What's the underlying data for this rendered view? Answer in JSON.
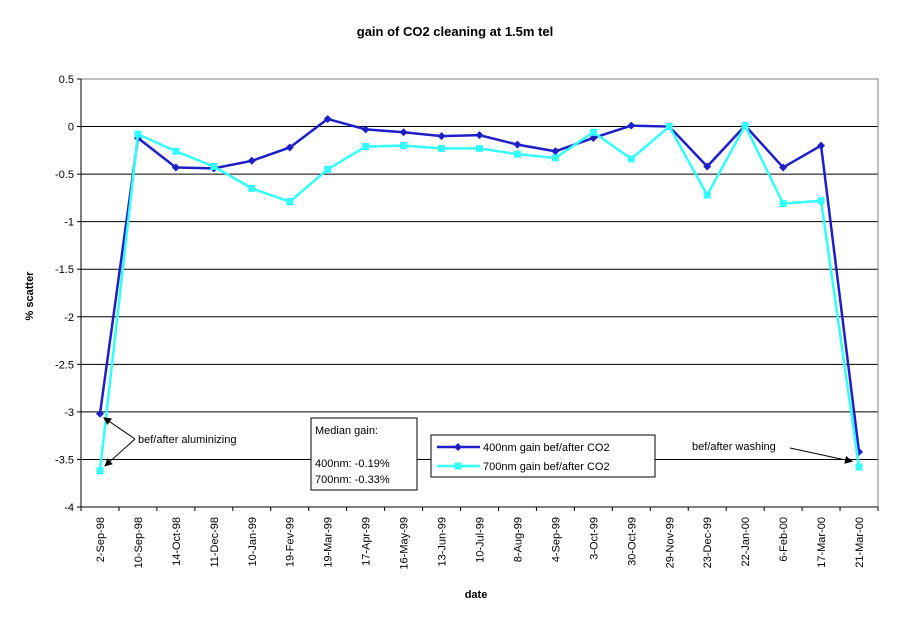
{
  "chart_data": {
    "type": "line",
    "title": "gain of CO2 cleaning at 1.5m tel",
    "xlabel": "date",
    "ylabel": "% scatter",
    "ylim": [
      -4,
      0.5
    ],
    "ytick_step": 0.5,
    "y_tick_labels": [
      "0.5",
      "0",
      "-0.5",
      "-1",
      "-1.5",
      "-2",
      "-2.5",
      "-3",
      "-3.5",
      "-4"
    ],
    "grid": true,
    "legend_position": "bottom-center",
    "categories": [
      "2-Sep-98",
      "10-Sep-98",
      "14-Oct-98",
      "11-Dec-98",
      "10-Jan-99",
      "19-Fev-99",
      "19-Mar-99",
      "17-Apr-99",
      "16-May-99",
      "13-Jun-99",
      "10-Jul-99",
      "8-Aug-99",
      "4-Sep-99",
      "3-Oct-99",
      "30-Oct-99",
      "29-Nov-99",
      "23-Dec-99",
      "22-Jan-00",
      "6-Feb-00",
      "17-Mar-00",
      "21-Mar-00"
    ],
    "series": [
      {
        "name": "400nm gain bef/after CO2",
        "color": "#1F1FC8",
        "marker": "diamond",
        "values": [
          -3.02,
          -0.12,
          -0.43,
          -0.44,
          -0.36,
          -0.22,
          0.08,
          -0.03,
          -0.06,
          -0.1,
          -0.09,
          -0.19,
          -0.26,
          -0.12,
          0.01,
          0.0,
          -0.42,
          0.01,
          -0.43,
          -0.2,
          -3.42
        ]
      },
      {
        "name": "700nm gain bef/after CO2",
        "color": "#33FFFF",
        "marker": "square",
        "values": [
          -3.62,
          -0.08,
          -0.26,
          -0.42,
          -0.65,
          -0.79,
          -0.45,
          -0.21,
          -0.2,
          -0.23,
          -0.23,
          -0.29,
          -0.33,
          -0.06,
          -0.34,
          0.0,
          -0.72,
          0.01,
          -0.81,
          -0.78,
          -3.58
        ]
      }
    ],
    "annotations": {
      "aluminizing": "bef/after aluminizing",
      "washing": "bef/after washing",
      "median_title": "Median gain:",
      "median_400": "400nm: -0.19%",
      "median_700": "700nm: -0.33%"
    }
  }
}
